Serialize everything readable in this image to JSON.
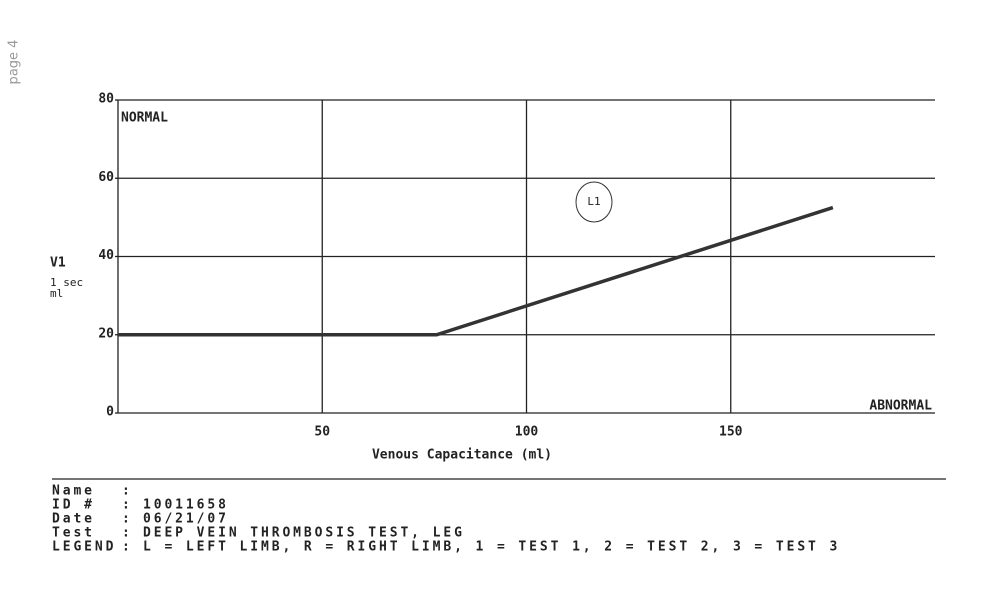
{
  "page_label": "page 4",
  "chart_data": {
    "type": "line",
    "title_left": "NORMAL",
    "title_right": "ABNORMAL",
    "y_label": "V1",
    "y_unit_top": "1 sec",
    "y_unit_bottom": "ml",
    "x_label": "Venous Capacitance (ml)",
    "x": [
      0,
      78,
      175
    ],
    "series": [
      {
        "name": "L1",
        "color": "#333333",
        "values": [
          20,
          20,
          52.5
        ]
      }
    ],
    "xlim": [
      0,
      200
    ],
    "xticks": [
      50,
      100,
      150
    ],
    "ylim": [
      0,
      80
    ],
    "yticks": [
      0,
      20,
      40,
      60,
      80
    ],
    "grid": true
  },
  "report": {
    "separator": ":",
    "fields": [
      {
        "label": "Name"
      },
      {
        "label": "ID #",
        "value": "10011658"
      },
      {
        "label": "Date",
        "value": "06/21/07"
      },
      {
        "label": "Test",
        "value": "DEEP VEIN THROMBOSIS TEST, LEG"
      },
      {
        "label": "LEGEND",
        "value": "L = LEFT LIMB, R = RIGHT LIMB, 1 = TEST 1, 2 = TEST 2, 3 = TEST 3"
      }
    ]
  }
}
